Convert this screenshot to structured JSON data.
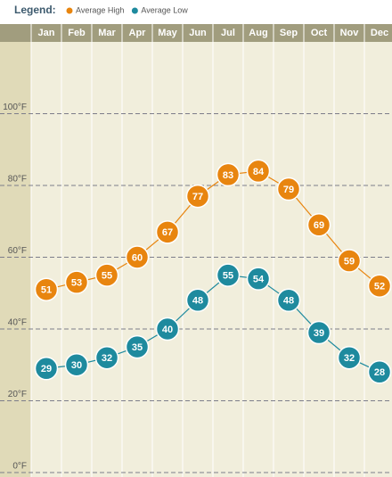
{
  "chart_data": {
    "type": "line",
    "legend_title": "Legend:",
    "categories": [
      "Jan",
      "Feb",
      "Mar",
      "Apr",
      "May",
      "Jun",
      "Jul",
      "Aug",
      "Sep",
      "Oct",
      "Nov",
      "Dec"
    ],
    "series": [
      {
        "name": "Average High",
        "color": "#e8850f",
        "values": [
          51,
          53,
          55,
          60,
          67,
          77,
          83,
          84,
          79,
          69,
          59,
          52
        ]
      },
      {
        "name": "Average Low",
        "color": "#1e8a9e",
        "values": [
          29,
          30,
          32,
          35,
          40,
          48,
          55,
          54,
          48,
          39,
          32,
          28
        ]
      }
    ],
    "ylim": [
      0,
      120
    ],
    "yticks": [
      {
        "value": 0,
        "label": "0°F"
      },
      {
        "value": 20,
        "label": "20°F"
      },
      {
        "value": 40,
        "label": "40°F"
      },
      {
        "value": 60,
        "label": "60°F"
      },
      {
        "value": 80,
        "label": "80°F"
      },
      {
        "value": 100,
        "label": "100°F"
      }
    ],
    "grid": true
  }
}
